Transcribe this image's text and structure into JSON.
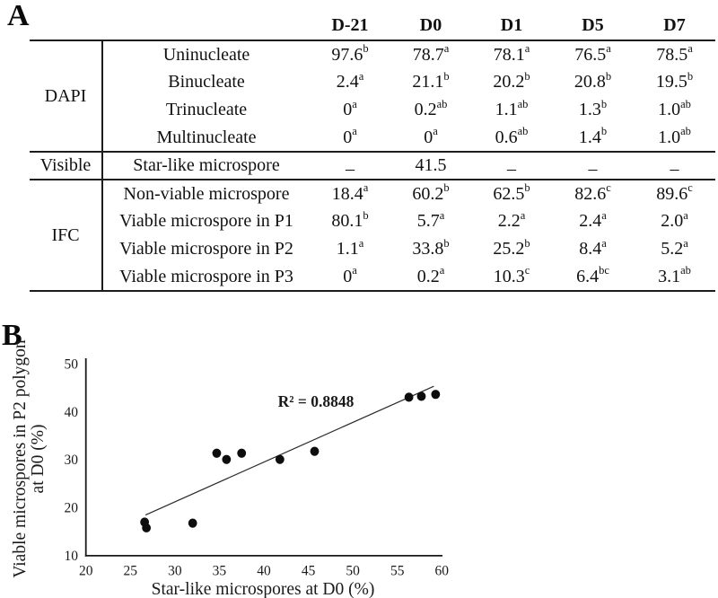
{
  "panels": {
    "a_label": "A",
    "b_label": "B"
  },
  "table": {
    "day_headers": [
      "D-21",
      "D0",
      "D1",
      "D5",
      "D7"
    ],
    "groups": [
      {
        "name": "DAPI",
        "rows": [
          {
            "label": "Uninucleate",
            "values": [
              "97.6^b",
              "78.7^a",
              "78.1^a",
              "76.5^a",
              "78.5^a"
            ]
          },
          {
            "label": "Binucleate",
            "values": [
              "2.4^a",
              "21.1^b",
              "20.2^b",
              "20.8^b",
              "19.5^b"
            ]
          },
          {
            "label": "Trinucleate",
            "values": [
              "0^a",
              "0.2^ab",
              "1.1^ab",
              "1.3^b",
              "1.0^ab"
            ]
          },
          {
            "label": "Multinucleate",
            "values": [
              "0^a",
              "0^a",
              "0.6^ab",
              "1.4^b",
              "1.0^ab"
            ]
          }
        ]
      },
      {
        "name": "Visible",
        "rows": [
          {
            "label": "Star-like microspore",
            "values": [
              "–",
              "41.5",
              "–",
              "–",
              "–"
            ]
          }
        ]
      },
      {
        "name": "IFC",
        "rows": [
          {
            "label": "Non-viable microspore",
            "values": [
              "18.4^a",
              "60.2^b",
              "62.5^b",
              "82.6^c",
              "89.6^c"
            ]
          },
          {
            "label": "Viable microspore in P1",
            "values": [
              "80.1^b",
              "5.7^a",
              "2.2^a",
              "2.4^a",
              "2.0^a"
            ]
          },
          {
            "label": "Viable microspore in P2",
            "values": [
              "1.1^a",
              "33.8^b",
              "25.2^b",
              "8.4^a",
              "5.2^a"
            ]
          },
          {
            "label": "Viable microspore in P3",
            "values": [
              "0^a",
              "0.2^a",
              "10.3^c",
              "6.4^bc",
              "3.1^ab"
            ]
          }
        ]
      }
    ]
  },
  "chart_data": {
    "type": "scatter",
    "title": "",
    "xlabel": "Star-like microspores at D0 (%)",
    "ylabel_lines": [
      "Viable microspores in P2 polygon",
      "at D0 (%)"
    ],
    "xlim": [
      20,
      60
    ],
    "ylim": [
      10,
      50
    ],
    "xticks": [
      20,
      25,
      30,
      35,
      40,
      45,
      50,
      55,
      60
    ],
    "yticks": [
      10,
      20,
      30,
      40,
      50
    ],
    "grid": false,
    "legend": "none",
    "points": [
      [
        26.6,
        16.9
      ],
      [
        26.8,
        15.7
      ],
      [
        32.0,
        16.7
      ],
      [
        34.7,
        31.3
      ],
      [
        35.8,
        30.0
      ],
      [
        37.5,
        31.3
      ],
      [
        41.8,
        30.0
      ],
      [
        45.7,
        31.7
      ],
      [
        56.3,
        43.0
      ],
      [
        57.7,
        43.2
      ],
      [
        59.3,
        43.6
      ]
    ],
    "trendline": {
      "x1": 26.7,
      "y1": 18.4,
      "x2": 59.1,
      "y2": 45.3
    },
    "annotation": "R² = 0.8848",
    "r_squared": 0.8848,
    "point_color": "#0d0d0d",
    "line_color": "#2a2a2a",
    "axis_color": "#1a1a1a"
  }
}
